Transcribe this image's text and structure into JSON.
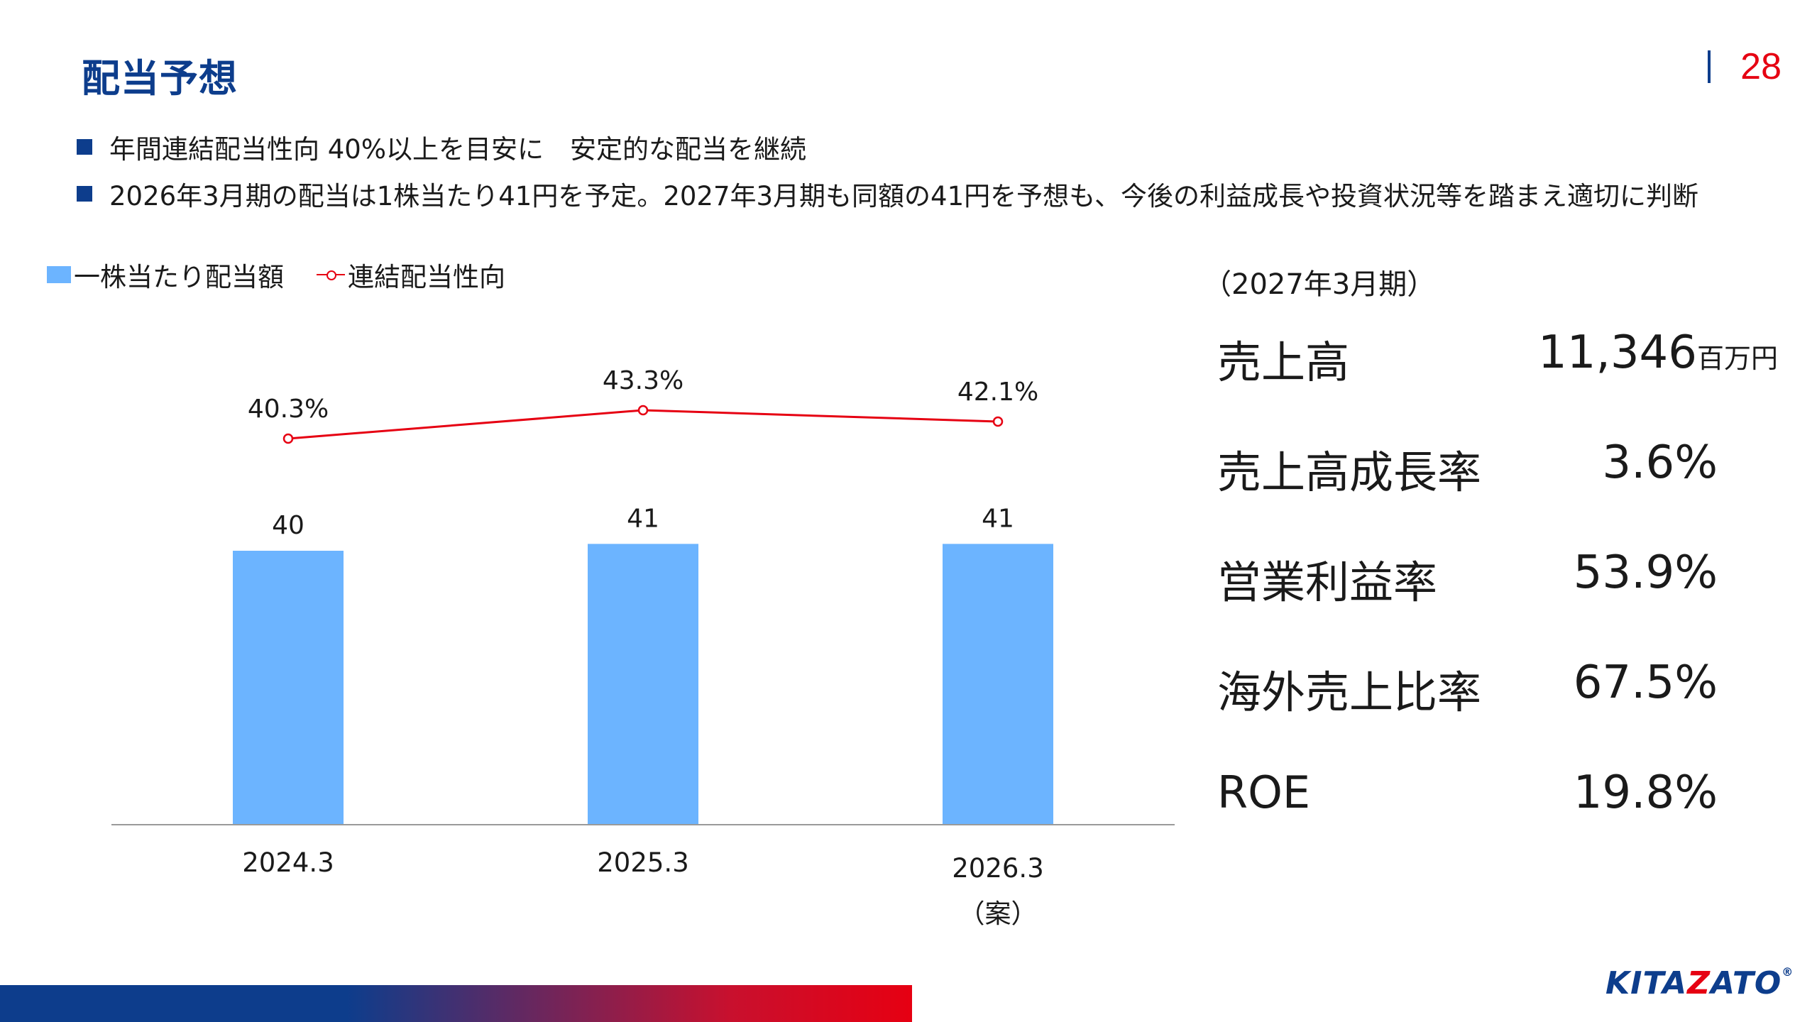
{
  "header": {
    "title": "配当予想",
    "page_number": "28"
  },
  "bullets": [
    "年間連結配当性向 40%以上を目安に　安定的な配当を継続",
    "2026年3月期の配当は1株当たり41円を予定。2027年3月期も同額の41円を予想も、今後の利益成長や投資状況等を踏まえ適切に判断"
  ],
  "legend": {
    "bar": "一株当たり配当額",
    "line": "連結配当性向"
  },
  "chart_data": {
    "type": "bar",
    "categories": [
      [
        "2024.3"
      ],
      [
        "2025.3"
      ],
      [
        "2026.3",
        "（案）"
      ]
    ],
    "series": [
      {
        "name": "一株当たり配当額",
        "type": "bar",
        "values": [
          40,
          41,
          41
        ],
        "labels": [
          "40",
          "41",
          "41"
        ],
        "color": "#6cb4ff"
      },
      {
        "name": "連結配当性向",
        "type": "line",
        "values": [
          40.3,
          43.3,
          42.1
        ],
        "labels": [
          "40.3%",
          "43.3%",
          "42.1%"
        ],
        "color": "#e60012"
      }
    ]
  },
  "kpis": {
    "period": "（2027年3月期）",
    "items": [
      {
        "label": "売上高",
        "value": "11,346",
        "unit": "百万円"
      },
      {
        "label": "売上高成長率",
        "value": "3.6%",
        "unit": ""
      },
      {
        "label": "営業利益率",
        "value": "53.9%",
        "unit": ""
      },
      {
        "label": "海外売上比率",
        "value": "67.5%",
        "unit": ""
      },
      {
        "label": "ROE",
        "value": "19.8%",
        "unit": ""
      }
    ]
  },
  "footer": {
    "logo_prefix": "KITA",
    "logo_accent": "Z",
    "logo_suffix": "ATO",
    "logo_mark": "®"
  },
  "colors": {
    "brand_blue": "#0d3d8c",
    "brand_red": "#e60012",
    "bar_blue": "#6cb4ff"
  }
}
